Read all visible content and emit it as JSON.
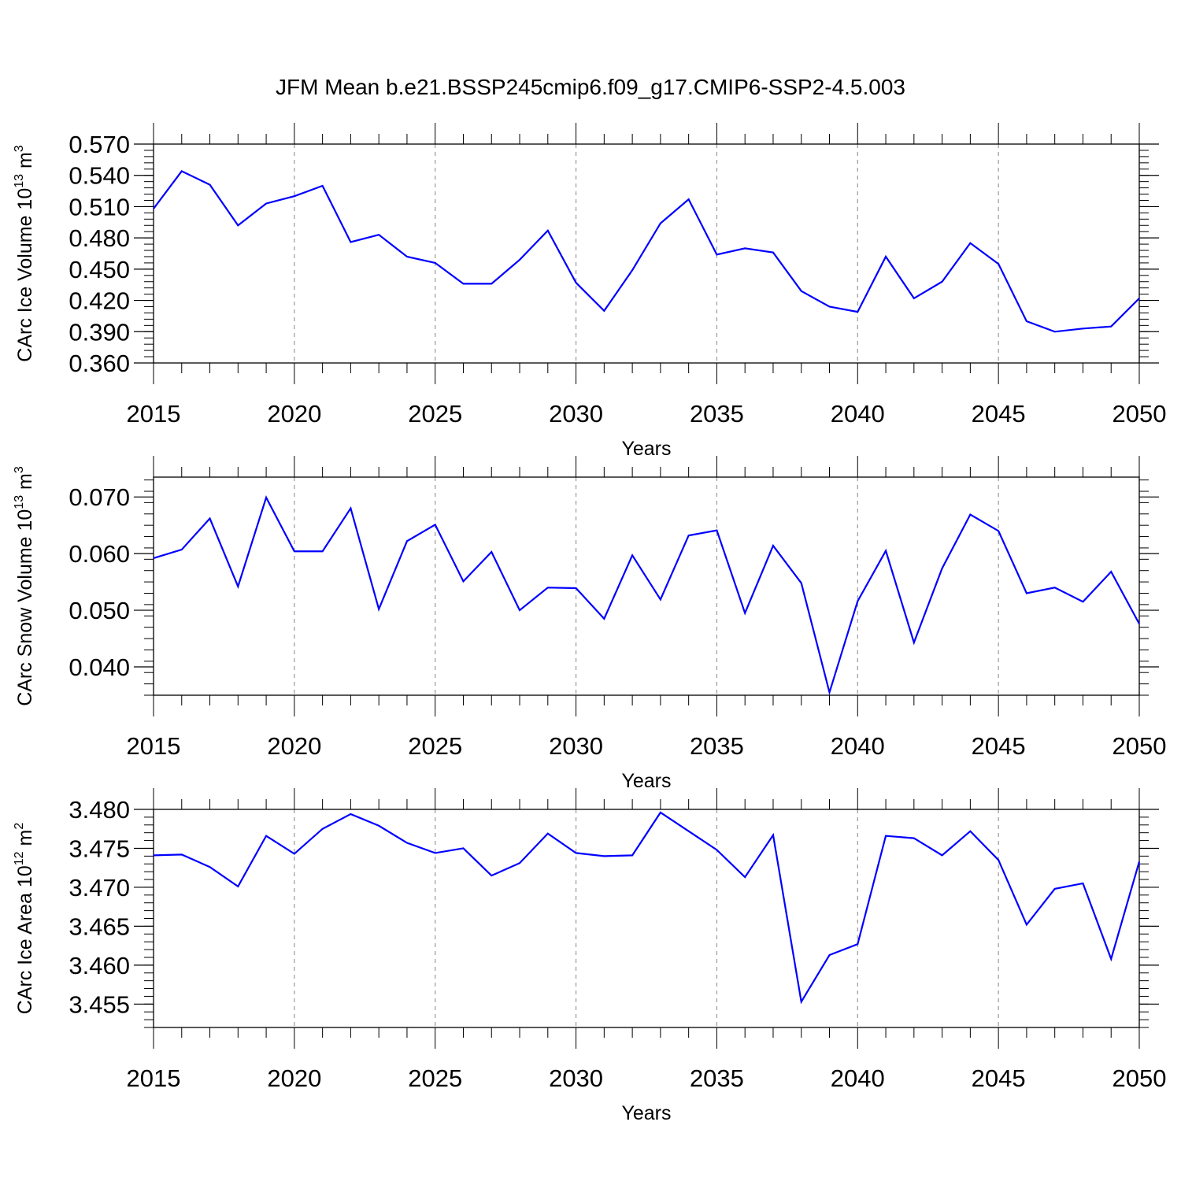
{
  "title": "JFM Mean b.e21.BSSP245cmip6.f09_g17.CMIP6-SSP2-4.5.003",
  "colors": {
    "line": "#0000ff",
    "axis": "#000000",
    "grid": "#999999"
  },
  "chart_data": [
    {
      "type": "line",
      "ylabel": {
        "text": "CArc Ice Volume 10",
        "exp": "13",
        "unit": " m",
        "unit_exp": "3"
      },
      "xlabel": "Years",
      "xlim": [
        2015,
        2050
      ],
      "ylim": [
        0.36,
        0.57
      ],
      "x_ticks": [
        2015,
        2020,
        2025,
        2030,
        2035,
        2040,
        2045,
        2050
      ],
      "x_tick_labels": [
        "2015",
        "2020",
        "2025",
        "2030",
        "2035",
        "2040",
        "2045",
        "2050"
      ],
      "y_ticks": [
        0.36,
        0.39,
        0.42,
        0.45,
        0.48,
        0.51,
        0.54,
        0.57
      ],
      "y_tick_labels": [
        "0.360",
        "0.390",
        "0.420",
        "0.450",
        "0.480",
        "0.510",
        "0.540",
        "0.570"
      ],
      "y_minor_step": 0.006,
      "grid": "vertical dashed at major x ticks",
      "x": [
        2015,
        2016,
        2017,
        2018,
        2019,
        2020,
        2021,
        2022,
        2023,
        2024,
        2025,
        2026,
        2027,
        2028,
        2029,
        2030,
        2031,
        2032,
        2033,
        2034,
        2035,
        2036,
        2037,
        2038,
        2039,
        2040,
        2041,
        2042,
        2043,
        2044,
        2045,
        2046,
        2047,
        2048,
        2049,
        2050
      ],
      "series": [
        {
          "values": [
            0.508,
            0.544,
            0.531,
            0.492,
            0.513,
            0.52,
            0.53,
            0.476,
            0.483,
            0.462,
            0.456,
            0.436,
            0.436,
            0.459,
            0.487,
            0.437,
            0.41,
            0.449,
            0.494,
            0.517,
            0.464,
            0.47,
            0.466,
            0.429,
            0.414,
            0.409,
            0.462,
            0.422,
            0.438,
            0.475,
            0.455,
            0.4,
            0.39,
            0.393,
            0.395,
            0.422
          ]
        }
      ]
    },
    {
      "type": "line",
      "ylabel": {
        "text": "CArc Snow Volume 10",
        "exp": "13",
        "unit": " m",
        "unit_exp": "3"
      },
      "xlabel": "Years",
      "xlim": [
        2015,
        2050
      ],
      "ylim": [
        0.035,
        0.0735
      ],
      "x_ticks": [
        2015,
        2020,
        2025,
        2030,
        2035,
        2040,
        2045,
        2050
      ],
      "x_tick_labels": [
        "2015",
        "2020",
        "2025",
        "2030",
        "2035",
        "2040",
        "2045",
        "2050"
      ],
      "y_ticks": [
        0.04,
        0.05,
        0.06,
        0.07
      ],
      "y_tick_labels": [
        "0.040",
        "0.050",
        "0.060",
        "0.070"
      ],
      "y_minor_step": 0.002,
      "grid": "vertical dashed at major x ticks",
      "x": [
        2015,
        2016,
        2017,
        2018,
        2019,
        2020,
        2021,
        2022,
        2023,
        2024,
        2025,
        2026,
        2027,
        2028,
        2029,
        2030,
        2031,
        2032,
        2033,
        2034,
        2035,
        2036,
        2037,
        2038,
        2039,
        2040,
        2041,
        2042,
        2043,
        2044,
        2045,
        2046,
        2047,
        2048,
        2049,
        2050
      ],
      "series": [
        {
          "values": [
            0.0592,
            0.0607,
            0.0662,
            0.0542,
            0.0699,
            0.0604,
            0.0604,
            0.068,
            0.0502,
            0.0622,
            0.0651,
            0.0551,
            0.0603,
            0.05,
            0.054,
            0.0539,
            0.0485,
            0.0597,
            0.0519,
            0.0632,
            0.0641,
            0.0495,
            0.0614,
            0.0548,
            0.0355,
            0.0516,
            0.0605,
            0.0443,
            0.0574,
            0.0669,
            0.064,
            0.053,
            0.054,
            0.0515,
            0.0568,
            0.0476
          ]
        }
      ]
    },
    {
      "type": "line",
      "ylabel": {
        "text": "CArc Ice Area 10",
        "exp": "12",
        "unit": " m",
        "unit_exp": "2"
      },
      "xlabel": "Years",
      "xlim": [
        2015,
        2050
      ],
      "ylim": [
        3.452,
        3.48
      ],
      "x_ticks": [
        2015,
        2020,
        2025,
        2030,
        2035,
        2040,
        2045,
        2050
      ],
      "x_tick_labels": [
        "2015",
        "2020",
        "2025",
        "2030",
        "2035",
        "2040",
        "2045",
        "2050"
      ],
      "y_ticks": [
        3.455,
        3.46,
        3.465,
        3.47,
        3.475,
        3.48
      ],
      "y_tick_labels": [
        "3.455",
        "3.460",
        "3.465",
        "3.470",
        "3.475",
        "3.480"
      ],
      "y_minor_step": 0.001,
      "grid": "vertical dashed at major x ticks",
      "x": [
        2015,
        2016,
        2017,
        2018,
        2019,
        2020,
        2021,
        2022,
        2023,
        2024,
        2025,
        2026,
        2027,
        2028,
        2029,
        2030,
        2031,
        2032,
        2033,
        2034,
        2035,
        2036,
        2037,
        2038,
        2039,
        2040,
        2041,
        2042,
        2043,
        2044,
        2045,
        2046,
        2047,
        2048,
        2049,
        2050
      ],
      "series": [
        {
          "values": [
            3.4741,
            3.4742,
            3.4726,
            3.4701,
            3.4766,
            3.4743,
            3.4775,
            3.4794,
            3.4779,
            3.4757,
            3.4744,
            3.475,
            3.4715,
            3.4731,
            3.4769,
            3.4744,
            3.474,
            3.4741,
            3.4796,
            3.4772,
            3.4748,
            3.4713,
            3.4767,
            3.4553,
            3.4613,
            3.4627,
            3.4766,
            3.4763,
            3.4741,
            3.4772,
            3.4735,
            3.4652,
            3.4698,
            3.4705,
            3.4608,
            3.4733
          ]
        }
      ]
    }
  ]
}
